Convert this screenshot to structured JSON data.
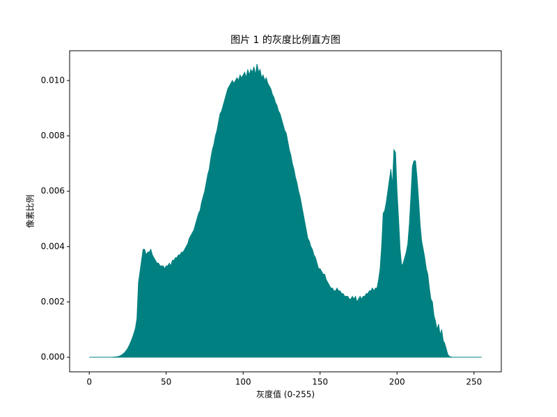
{
  "chart_data": {
    "type": "area",
    "title": "图片 1 的灰度比例直方图",
    "xlabel": "灰度值 (0-255)",
    "ylabel": "像素比例",
    "color": "#008080",
    "xlim": [
      -12.75,
      267.75
    ],
    "ylim": [
      -0.000527,
      0.011078
    ],
    "xticks": [
      0,
      50,
      100,
      150,
      200,
      250
    ],
    "yticks": [
      {
        "value": 0,
        "label": "0.000"
      },
      {
        "value": 0.002,
        "label": "0.002"
      },
      {
        "value": 0.004,
        "label": "0.004"
      },
      {
        "value": 0.006,
        "label": "0.006"
      },
      {
        "value": 0.008,
        "label": "0.008"
      },
      {
        "value": 0.01,
        "label": "0.010"
      }
    ],
    "grid": false,
    "x": [
      0,
      1,
      2,
      3,
      4,
      5,
      6,
      7,
      8,
      9,
      10,
      11,
      12,
      13,
      14,
      15,
      16,
      17,
      18,
      19,
      20,
      21,
      22,
      23,
      24,
      25,
      26,
      27,
      28,
      29,
      30,
      31,
      32,
      33,
      34,
      35,
      36,
      37,
      38,
      39,
      40,
      41,
      42,
      43,
      44,
      45,
      46,
      47,
      48,
      49,
      50,
      51,
      52,
      53,
      54,
      55,
      56,
      57,
      58,
      59,
      60,
      61,
      62,
      63,
      64,
      65,
      66,
      67,
      68,
      69,
      70,
      71,
      72,
      73,
      74,
      75,
      76,
      77,
      78,
      79,
      80,
      81,
      82,
      83,
      84,
      85,
      86,
      87,
      88,
      89,
      90,
      91,
      92,
      93,
      94,
      95,
      96,
      97,
      98,
      99,
      100,
      101,
      102,
      103,
      104,
      105,
      106,
      107,
      108,
      109,
      110,
      111,
      112,
      113,
      114,
      115,
      116,
      117,
      118,
      119,
      120,
      121,
      122,
      123,
      124,
      125,
      126,
      127,
      128,
      129,
      130,
      131,
      132,
      133,
      134,
      135,
      136,
      137,
      138,
      139,
      140,
      141,
      142,
      143,
      144,
      145,
      146,
      147,
      148,
      149,
      150,
      151,
      152,
      153,
      154,
      155,
      156,
      157,
      158,
      159,
      160,
      161,
      162,
      163,
      164,
      165,
      166,
      167,
      168,
      169,
      170,
      171,
      172,
      173,
      174,
      175,
      176,
      177,
      178,
      179,
      180,
      181,
      182,
      183,
      184,
      185,
      186,
      187,
      188,
      189,
      190,
      191,
      192,
      193,
      194,
      195,
      196,
      197,
      198,
      199,
      200,
      201,
      202,
      203,
      204,
      205,
      206,
      207,
      208,
      209,
      210,
      211,
      212,
      213,
      214,
      215,
      216,
      217,
      218,
      219,
      220,
      221,
      222,
      223,
      224,
      225,
      226,
      227,
      228,
      229,
      230,
      231,
      232,
      233,
      234,
      235,
      236,
      237,
      238,
      239,
      240,
      241,
      242,
      243,
      244,
      245,
      246,
      247,
      248,
      249,
      250,
      251,
      252,
      253,
      254,
      255
    ],
    "values": [
      0,
      0,
      0,
      0,
      0,
      0,
      0,
      0,
      0,
      0,
      0,
      0,
      0,
      0,
      0,
      0,
      1e-05,
      1e-05,
      2e-05,
      3e-05,
      5e-05,
      8e-05,
      0.00012,
      0.00017,
      0.00024,
      0.00032,
      0.00043,
      0.00056,
      0.0007,
      0.00086,
      0.00105,
      0.0014,
      0.0027,
      0.0031,
      0.0035,
      0.0039,
      0.0039,
      0.0037,
      0.0038,
      0.0038,
      0.0039,
      0.0037,
      0.0036,
      0.0035,
      0.0034,
      0.0034,
      0.0033,
      0.0033,
      0.0033,
      0.0032,
      0.0033,
      0.0033,
      0.0034,
      0.0033,
      0.0035,
      0.0035,
      0.0036,
      0.0036,
      0.0037,
      0.0037,
      0.0038,
      0.0038,
      0.0039,
      0.004,
      0.0041,
      0.0043,
      0.0044,
      0.0045,
      0.0046,
      0.0048,
      0.005,
      0.0052,
      0.0053,
      0.0056,
      0.0058,
      0.006,
      0.0063,
      0.0066,
      0.0068,
      0.0072,
      0.0075,
      0.0077,
      0.008,
      0.0082,
      0.0085,
      0.0088,
      0.0089,
      0.0091,
      0.0093,
      0.0095,
      0.0097,
      0.0098,
      0.0099,
      0.01,
      0.0099,
      0.01,
      0.0101,
      0.01,
      0.0102,
      0.0101,
      0.0102,
      0.0103,
      0.0101,
      0.0104,
      0.0102,
      0.0104,
      0.0103,
      0.0105,
      0.0102,
      0.0106,
      0.0103,
      0.0104,
      0.0101,
      0.0102,
      0.01,
      0.0101,
      0.0099,
      0.0098,
      0.0097,
      0.0095,
      0.0094,
      0.0092,
      0.0091,
      0.0089,
      0.0088,
      0.0086,
      0.0084,
      0.0082,
      0.0081,
      0.0078,
      0.0075,
      0.0073,
      0.007,
      0.0068,
      0.0065,
      0.0063,
      0.006,
      0.0058,
      0.0055,
      0.0052,
      0.0049,
      0.0046,
      0.0043,
      0.0042,
      0.004,
      0.0039,
      0.0037,
      0.0036,
      0.0034,
      0.0032,
      0.0032,
      0.0031,
      0.003,
      0.003,
      0.0028,
      0.0027,
      0.0026,
      0.0025,
      0.0025,
      0.0024,
      0.0024,
      0.0025,
      0.0024,
      0.0024,
      0.0023,
      0.0023,
      0.0022,
      0.0022,
      0.0022,
      0.0021,
      0.0021,
      0.0022,
      0.0021,
      0.0022,
      0.002,
      0.0021,
      0.0022,
      0.0021,
      0.0022,
      0.0022,
      0.0023,
      0.0023,
      0.0024,
      0.0024,
      0.0025,
      0.0024,
      0.0025,
      0.0025,
      0.0028,
      0.0032,
      0.004,
      0.0052,
      0.0053,
      0.0056,
      0.006,
      0.0064,
      0.0068,
      0.0062,
      0.0075,
      0.0074,
      0.006,
      0.005,
      0.0039,
      0.0033,
      0.0034,
      0.0036,
      0.0038,
      0.0041,
      0.0048,
      0.0058,
      0.0069,
      0.0071,
      0.0071,
      0.0065,
      0.0057,
      0.0048,
      0.0042,
      0.0039,
      0.0036,
      0.0032,
      0.003,
      0.0025,
      0.0021,
      0.002,
      0.0015,
      0.0013,
      0.001,
      0.0012,
      0.0008,
      0.001,
      0.0006,
      0.0005,
      0.0003,
      0.0001,
      3e-05,
      1e-05,
      0,
      0,
      0,
      0,
      0,
      0,
      0,
      0,
      0,
      0,
      0,
      0,
      0,
      0,
      0,
      0,
      0,
      0,
      0,
      0
    ]
  }
}
